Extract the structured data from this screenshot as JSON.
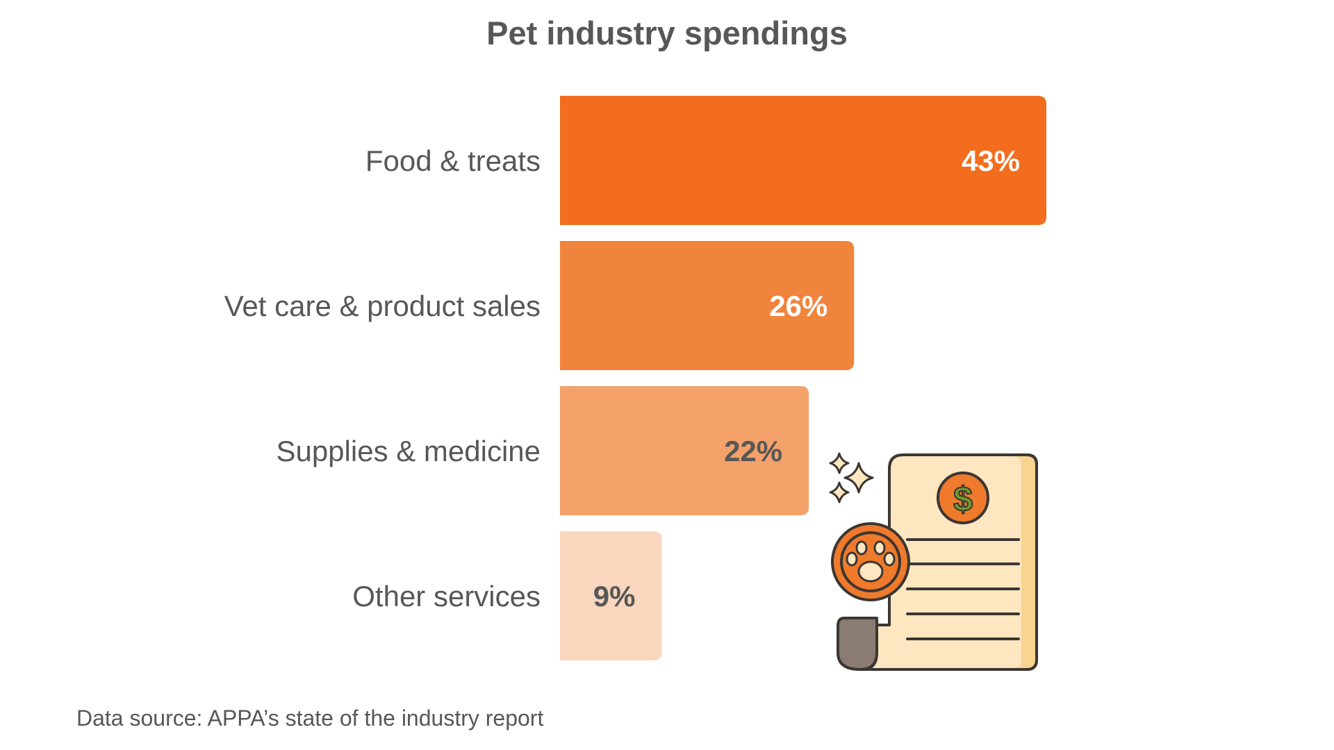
{
  "chart_data": {
    "type": "bar",
    "orientation": "horizontal",
    "title": "Pet industry spendings",
    "categories": [
      "Food & treats",
      "Vet care & product sales",
      "Supplies & medicine",
      "Other services"
    ],
    "values": [
      43,
      26,
      22,
      9
    ],
    "value_labels": [
      "43%",
      "26%",
      "22%",
      "9%"
    ],
    "unit": "%",
    "xlim": [
      0,
      43
    ],
    "grid": false,
    "legend": "none",
    "bar_colors": [
      "#f26d1d",
      "#f1843c",
      "#f4a16a",
      "#fad6be"
    ],
    "value_label_colors": [
      "#ffffff",
      "#ffffff",
      "#575757",
      "#575757"
    ]
  },
  "footer": {
    "source": "Data source: APPA’s state of the industry report"
  },
  "illustration": {
    "icon": "pet-bill-receipt-icon",
    "colors": {
      "paper": "#fde6c0",
      "paper_edge": "#f7d48f",
      "outline": "#3b3632",
      "coin": "#ef7a2c",
      "dollar": "#6f9a2e",
      "scroll": "#8a7c72",
      "sparkle": "#fde6c0"
    }
  }
}
